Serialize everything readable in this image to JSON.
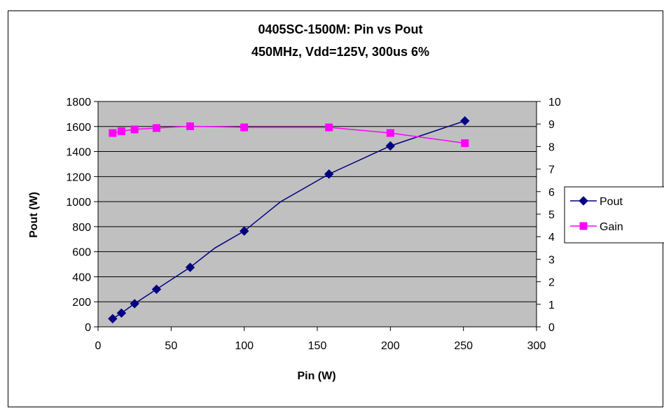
{
  "chart_data": {
    "type": "line",
    "title": "0405SC-1500M:  Pin vs Pout",
    "subtitle": "450MHz, Vdd=125V, 300us 6%",
    "xlabel": "Pin (W)",
    "ylabel": "Pout (W)",
    "y2label": "",
    "xlim": [
      0,
      300
    ],
    "ylim": [
      0,
      1800
    ],
    "y2lim": [
      0,
      10
    ],
    "x_ticks": [
      "0",
      "50",
      "100",
      "150",
      "200",
      "250",
      "300"
    ],
    "y_ticks": [
      "0",
      "200",
      "400",
      "600",
      "800",
      "1000",
      "1200",
      "1400",
      "1600",
      "1800"
    ],
    "y2_ticks": [
      "0",
      "1",
      "2",
      "3",
      "4",
      "5",
      "6",
      "7",
      "8",
      "9",
      "10"
    ],
    "grid": "horizontal",
    "plot_background": "#C0C0C0",
    "legend_position": "right",
    "series": [
      {
        "name": "Pout",
        "axis": "left",
        "color": "#000080",
        "marker": "diamond",
        "points": [
          [
            10,
            65
          ],
          [
            16,
            110
          ],
          [
            25,
            185
          ],
          [
            40,
            300
          ],
          [
            63,
            475
          ],
          [
            80,
            630
          ],
          [
            100,
            765
          ],
          [
            125,
            1000
          ],
          [
            158,
            1220
          ],
          [
            200,
            1445
          ],
          [
            251,
            1645
          ]
        ],
        "marked": [
          true,
          true,
          true,
          true,
          true,
          false,
          true,
          false,
          true,
          true,
          true
        ]
      },
      {
        "name": "Gain",
        "axis": "right",
        "color": "#FF00FF",
        "marker": "square",
        "points": [
          [
            10,
            8.6
          ],
          [
            16,
            8.68
          ],
          [
            25,
            8.76
          ],
          [
            40,
            8.82
          ],
          [
            63,
            8.9
          ],
          [
            100,
            8.85
          ],
          [
            158,
            8.85
          ],
          [
            200,
            8.6
          ],
          [
            251,
            8.15
          ]
        ],
        "marked": [
          true,
          true,
          true,
          true,
          true,
          true,
          true,
          true,
          true
        ]
      }
    ]
  }
}
